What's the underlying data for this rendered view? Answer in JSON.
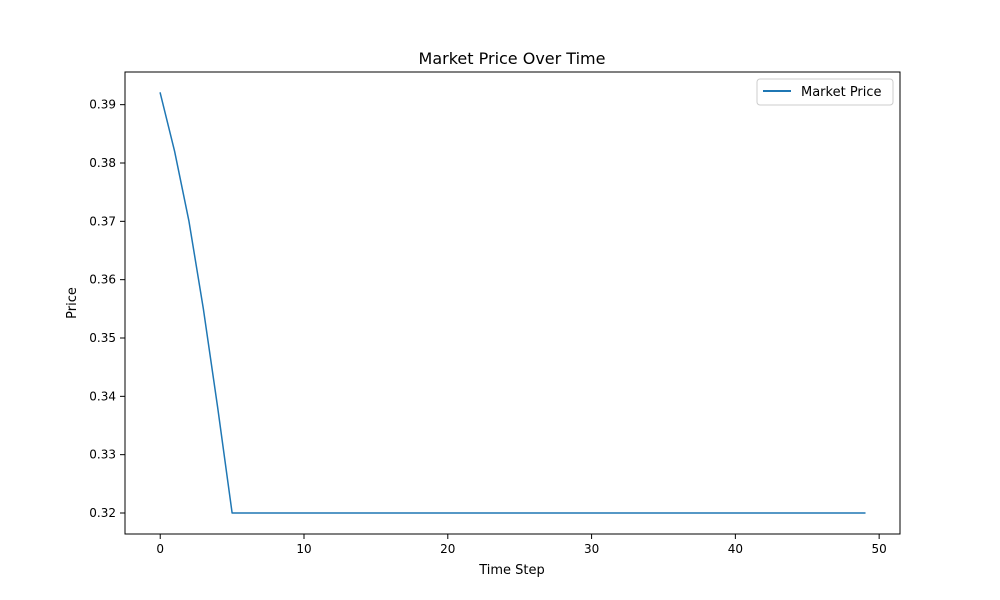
{
  "chart_data": {
    "type": "line",
    "title": "Market Price Over Time",
    "xlabel": "Time Step",
    "ylabel": "Price",
    "xlim": [
      -2.45,
      51.45
    ],
    "ylim": [
      0.3164,
      0.3956
    ],
    "xticks": [
      0,
      10,
      20,
      30,
      40,
      50
    ],
    "xtick_labels": [
      "0",
      "10",
      "20",
      "30",
      "40",
      "50"
    ],
    "yticks": [
      0.32,
      0.33,
      0.34,
      0.35,
      0.36,
      0.37,
      0.38,
      0.39
    ],
    "ytick_labels": [
      "0.32",
      "0.33",
      "0.34",
      "0.35",
      "0.36",
      "0.37",
      "0.38",
      "0.39"
    ],
    "grid": false,
    "legend_position": "top-right",
    "series": [
      {
        "name": "Market Price",
        "color": "#1f77b4",
        "x": [
          0,
          1,
          2,
          3,
          4,
          5,
          6,
          7,
          8,
          9,
          10,
          11,
          12,
          13,
          14,
          15,
          16,
          17,
          18,
          19,
          20,
          21,
          22,
          23,
          24,
          25,
          26,
          27,
          28,
          29,
          30,
          31,
          32,
          33,
          34,
          35,
          36,
          37,
          38,
          39,
          40,
          41,
          42,
          43,
          44,
          45,
          46,
          47,
          48,
          49
        ],
        "y": [
          0.392,
          0.382,
          0.37,
          0.355,
          0.338,
          0.32,
          0.32,
          0.32,
          0.32,
          0.32,
          0.32,
          0.32,
          0.32,
          0.32,
          0.32,
          0.32,
          0.32,
          0.32,
          0.32,
          0.32,
          0.32,
          0.32,
          0.32,
          0.32,
          0.32,
          0.32,
          0.32,
          0.32,
          0.32,
          0.32,
          0.32,
          0.32,
          0.32,
          0.32,
          0.32,
          0.32,
          0.32,
          0.32,
          0.32,
          0.32,
          0.32,
          0.32,
          0.32,
          0.32,
          0.32,
          0.32,
          0.32,
          0.32,
          0.32,
          0.32
        ]
      }
    ]
  }
}
